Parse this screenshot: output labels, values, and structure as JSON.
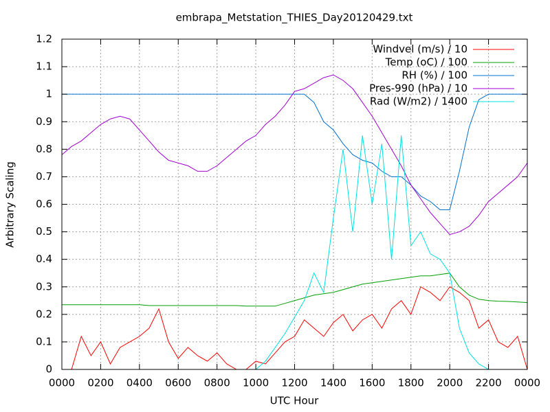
{
  "chart_data": {
    "type": "line",
    "title": "embrapa_Metstation_THIES_Day20120429.txt",
    "x_label": "UTC Hour",
    "y_label": "Arbitrary Scaling",
    "grid": true,
    "legend": "top-right",
    "xlim": [
      0,
      24
    ],
    "ylim": [
      0,
      1.2
    ],
    "xticks": [
      {
        "value": 0,
        "label": "0000"
      },
      {
        "value": 2,
        "label": "0200"
      },
      {
        "value": 4,
        "label": "0400"
      },
      {
        "value": 6,
        "label": "0600"
      },
      {
        "value": 8,
        "label": "0800"
      },
      {
        "value": 10,
        "label": "1000"
      },
      {
        "value": 12,
        "label": "1200"
      },
      {
        "value": 14,
        "label": "1400"
      },
      {
        "value": 16,
        "label": "1600"
      },
      {
        "value": 18,
        "label": "1800"
      },
      {
        "value": 20,
        "label": "2000"
      },
      {
        "value": 22,
        "label": "2200"
      },
      {
        "value": 24,
        "label": "0000"
      }
    ],
    "yticks": [
      0,
      0.1,
      0.2,
      0.3,
      0.4,
      0.5,
      0.6,
      0.7,
      0.8,
      0.9,
      1,
      1.1,
      1.2
    ],
    "x": [
      0,
      0.5,
      1,
      1.5,
      2,
      2.5,
      3,
      3.5,
      4,
      4.5,
      5,
      5.5,
      6,
      6.5,
      7,
      7.5,
      8,
      8.5,
      9,
      9.5,
      10,
      10.5,
      11,
      11.5,
      12,
      12.5,
      13,
      13.5,
      14,
      14.5,
      15,
      15.5,
      16,
      16.5,
      17,
      17.5,
      18,
      18.5,
      19,
      19.5,
      20,
      20.5,
      21,
      21.5,
      22,
      22.5,
      23,
      23.5,
      24
    ],
    "series": [
      {
        "name": "Windvel (m/s) / 10",
        "color": "#ff0000",
        "values": [
          0,
          0,
          0.12,
          0.05,
          0.1,
          0.02,
          0.08,
          0.1,
          0.12,
          0.15,
          0.22,
          0.1,
          0.04,
          0.08,
          0.05,
          0.03,
          0.06,
          0.02,
          0,
          0,
          0.03,
          0.02,
          0.06,
          0.1,
          0.12,
          0.18,
          0.15,
          0.12,
          0.17,
          0.2,
          0.14,
          0.18,
          0.2,
          0.15,
          0.22,
          0.25,
          0.2,
          0.3,
          0.28,
          0.25,
          0.3,
          0.28,
          0.25,
          0.15,
          0.18,
          0.1,
          0.08,
          0.12,
          0
        ]
      },
      {
        "name": "Temp (oC) / 100",
        "color": "#00a000",
        "values": [
          0.235,
          0.235,
          0.235,
          0.235,
          0.235,
          0.235,
          0.235,
          0.235,
          0.235,
          0.232,
          0.232,
          0.232,
          0.232,
          0.232,
          0.232,
          0.232,
          0.232,
          0.232,
          0.232,
          0.23,
          0.23,
          0.23,
          0.23,
          0.24,
          0.25,
          0.26,
          0.27,
          0.275,
          0.28,
          0.29,
          0.3,
          0.31,
          0.315,
          0.32,
          0.325,
          0.33,
          0.335,
          0.34,
          0.34,
          0.345,
          0.35,
          0.3,
          0.27,
          0.255,
          0.25,
          0.248,
          0.247,
          0.245,
          0.243
        ]
      },
      {
        "name": "RH (%) / 100",
        "color": "#0070d0",
        "values": [
          1,
          1,
          1,
          1,
          1,
          1,
          1,
          1,
          1,
          1,
          1,
          1,
          1,
          1,
          1,
          1,
          1,
          1,
          1,
          1,
          1,
          1,
          1,
          1,
          1,
          1,
          0.97,
          0.9,
          0.87,
          0.82,
          0.78,
          0.76,
          0.75,
          0.72,
          0.7,
          0.7,
          0.67,
          0.63,
          0.61,
          0.58,
          0.58,
          0.72,
          0.88,
          0.98,
          1,
          1,
          1,
          1,
          1
        ]
      },
      {
        "name": "Pres-990 (hPa) / 10",
        "color": "#a000d0",
        "values": [
          0.78,
          0.81,
          0.83,
          0.86,
          0.89,
          0.91,
          0.92,
          0.91,
          0.87,
          0.83,
          0.79,
          0.76,
          0.75,
          0.74,
          0.72,
          0.72,
          0.74,
          0.77,
          0.8,
          0.83,
          0.85,
          0.89,
          0.92,
          0.96,
          1.01,
          1.02,
          1.04,
          1.06,
          1.07,
          1.05,
          1.02,
          0.97,
          0.92,
          0.86,
          0.8,
          0.74,
          0.67,
          0.62,
          0.57,
          0.53,
          0.49,
          0.5,
          0.52,
          0.56,
          0.61,
          0.64,
          0.67,
          0.7,
          0.75
        ]
      },
      {
        "name": "Rad (W/m2) / 1400",
        "color": "#00e0e0",
        "values": [
          0,
          0,
          0,
          0,
          0,
          0,
          0,
          0,
          0,
          0,
          0,
          0,
          0,
          0,
          0,
          0,
          0,
          0,
          0,
          0,
          0,
          0.03,
          0.08,
          0.13,
          0.19,
          0.25,
          0.35,
          0.28,
          0.55,
          0.8,
          0.5,
          0.85,
          0.6,
          0.82,
          0.4,
          0.85,
          0.45,
          0.5,
          0.42,
          0.4,
          0.35,
          0.15,
          0.06,
          0.02,
          0,
          0,
          0,
          0,
          0
        ]
      }
    ]
  }
}
